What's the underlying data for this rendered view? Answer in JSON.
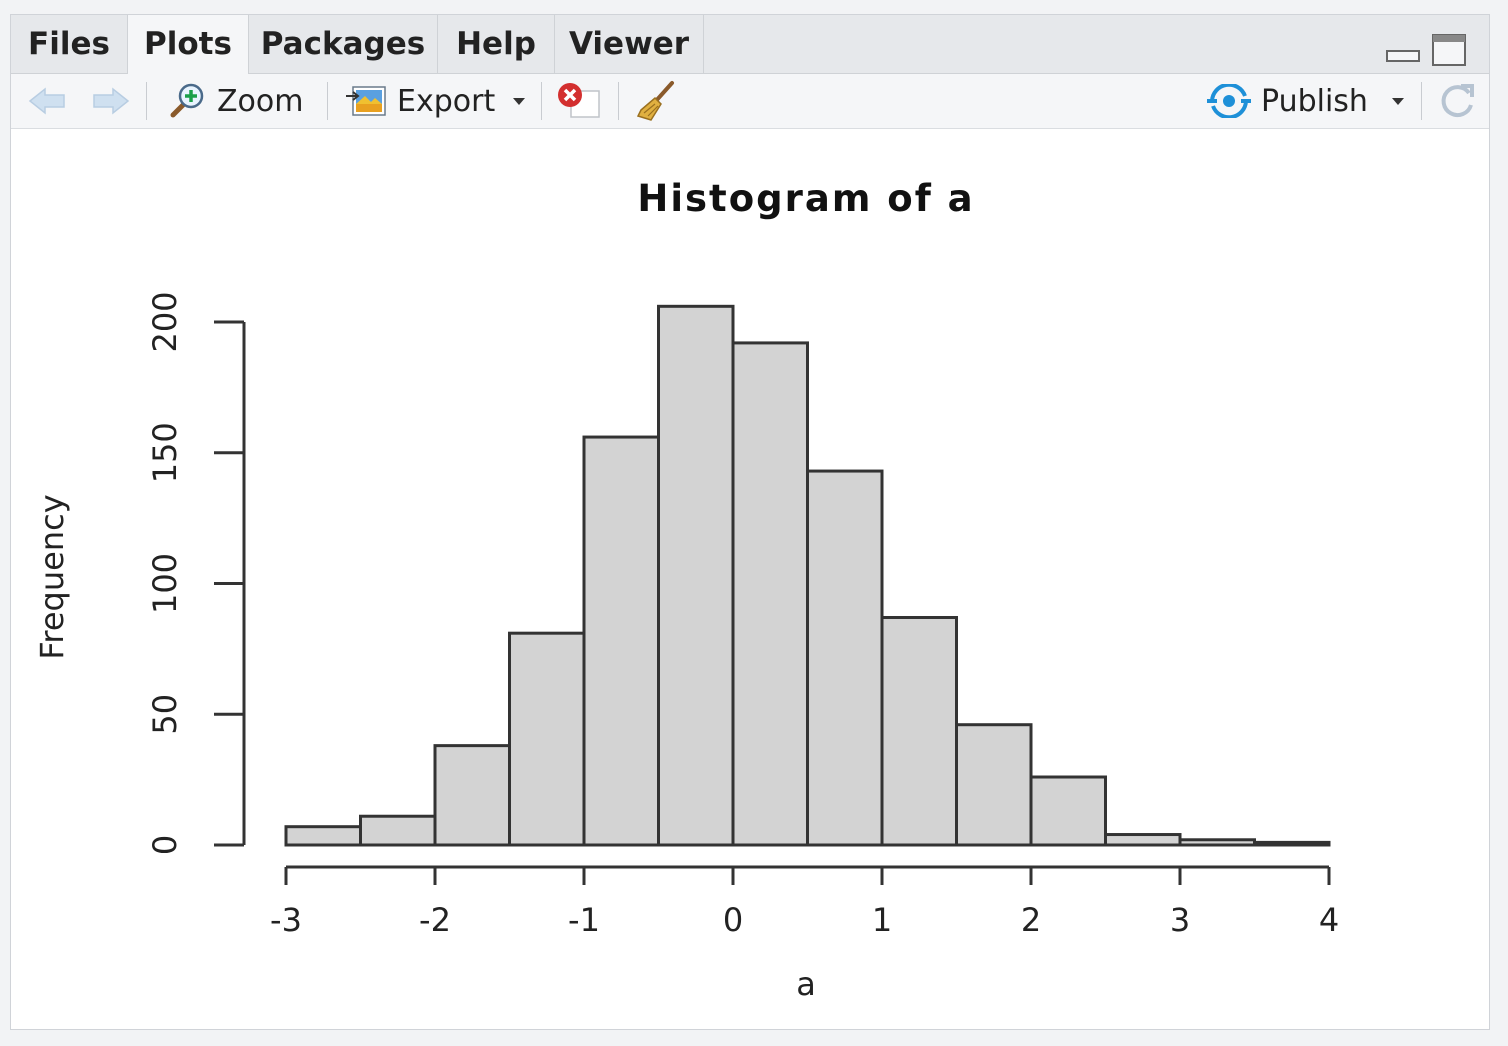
{
  "tabs": [
    {
      "label": "Files"
    },
    {
      "label": "Plots"
    },
    {
      "label": "Packages"
    },
    {
      "label": "Help"
    },
    {
      "label": "Viewer"
    }
  ],
  "active_tab": "Plots",
  "toolbar": {
    "zoom_label": "Zoom",
    "export_label": "Export",
    "publish_label": "Publish"
  },
  "colors": {
    "bar_fill": "#d3d3d3",
    "bar_stroke": "#333333",
    "publish_accent": "#1e90d8",
    "remove_red": "#d32f2f"
  },
  "chart_data": {
    "type": "bar",
    "title": "Histogram of a",
    "xlabel": "a",
    "ylabel": "Frequency",
    "bin_edges": [
      -3,
      -2.5,
      -2,
      -1.5,
      -1,
      -0.5,
      0,
      0.5,
      1,
      1.5,
      2,
      2.5,
      3,
      3.5,
      4
    ],
    "values": [
      7,
      11,
      38,
      81,
      156,
      206,
      192,
      143,
      87,
      46,
      26,
      4,
      2,
      1
    ],
    "xlim": [
      -3,
      4
    ],
    "ylim": [
      0,
      200
    ],
    "x_ticks": [
      "-3",
      "-2",
      "-1",
      "0",
      "1",
      "2",
      "3",
      "4"
    ],
    "y_ticks": [
      "0",
      "50",
      "100",
      "150",
      "200"
    ],
    "grid": false
  }
}
